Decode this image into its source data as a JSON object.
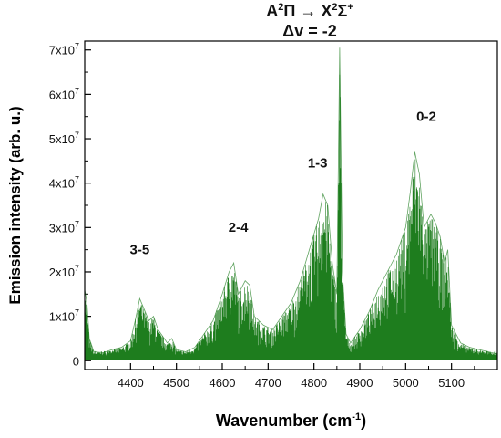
{
  "chart_data": {
    "type": "line",
    "title": {
      "line1_left": "A",
      "line1_sup1": "2",
      "line1_mid": "Π → X",
      "line1_sup2": "2",
      "line1_sym": "Σ",
      "line1_sup3": "+",
      "line2": "Δv = -2"
    },
    "xlabel_main": "Wavenumber (cm",
    "xlabel_sup": "-1",
    "xlabel_end": ")",
    "ylabel": "Emission intensity (arb. u.)",
    "xlim": [
      4300,
      5200
    ],
    "ylim": [
      -2000000.0,
      72000000.0
    ],
    "x_ticks": [
      4400,
      4500,
      4600,
      4700,
      4800,
      4900,
      5000,
      5100
    ],
    "x_tick_labels": [
      "4400",
      "4500",
      "4600",
      "4700",
      "4800",
      "4900",
      "5000",
      "5100"
    ],
    "y_ticks": [
      {
        "value": 0,
        "label_main": "0",
        "label_sup": ""
      },
      {
        "value": 10000000,
        "label_main": "1x10",
        "label_sup": "7"
      },
      {
        "value": 20000000,
        "label_main": "2x10",
        "label_sup": "7"
      },
      {
        "value": 30000000,
        "label_main": "3x10",
        "label_sup": "7"
      },
      {
        "value": 40000000,
        "label_main": "4x10",
        "label_sup": "7"
      },
      {
        "value": 50000000,
        "label_main": "5x10",
        "label_sup": "7"
      },
      {
        "value": 60000000,
        "label_main": "6x10",
        "label_sup": "7"
      },
      {
        "value": 70000000,
        "label_main": "7x10",
        "label_sup": "7"
      }
    ],
    "series_color": "#1e7d1e",
    "bands": [
      {
        "label": "3-5",
        "x": 4420,
        "y": 24000000
      },
      {
        "label": "2-4",
        "x": 4635,
        "y": 29000000
      },
      {
        "label": "1-3",
        "x": 4808,
        "y": 43500000
      },
      {
        "label": "0-2",
        "x": 5045,
        "y": 54000000
      }
    ],
    "envelope": [
      [
        4300,
        16000000
      ],
      [
        4305,
        13000000
      ],
      [
        4310,
        5000000
      ],
      [
        4320,
        2000000
      ],
      [
        4340,
        1800000
      ],
      [
        4360,
        2500000
      ],
      [
        4380,
        3000000
      ],
      [
        4400,
        4500000
      ],
      [
        4410,
        9000000
      ],
      [
        4420,
        14000000
      ],
      [
        4430,
        11500000
      ],
      [
        4440,
        9000000
      ],
      [
        4450,
        10000000
      ],
      [
        4460,
        7000000
      ],
      [
        4470,
        5500000
      ],
      [
        4480,
        4000000
      ],
      [
        4490,
        5000000
      ],
      [
        4500,
        2500000
      ],
      [
        4520,
        2000000
      ],
      [
        4540,
        3000000
      ],
      [
        4560,
        6000000
      ],
      [
        4580,
        9000000
      ],
      [
        4600,
        15000000
      ],
      [
        4615,
        20000000
      ],
      [
        4625,
        22000000
      ],
      [
        4635,
        15000000
      ],
      [
        4650,
        18000000
      ],
      [
        4660,
        17000000
      ],
      [
        4670,
        10000000
      ],
      [
        4690,
        8000000
      ],
      [
        4710,
        7000000
      ],
      [
        4730,
        10000000
      ],
      [
        4750,
        13000000
      ],
      [
        4770,
        18000000
      ],
      [
        4790,
        25000000
      ],
      [
        4810,
        32000000
      ],
      [
        4820,
        37500000
      ],
      [
        4830,
        35000000
      ],
      [
        4840,
        22000000
      ],
      [
        4850,
        15000000
      ],
      [
        4856,
        70500000
      ],
      [
        4862,
        20000000
      ],
      [
        4870,
        6000000
      ],
      [
        4880,
        4000000
      ],
      [
        4900,
        7000000
      ],
      [
        4920,
        11000000
      ],
      [
        4940,
        16000000
      ],
      [
        4960,
        20000000
      ],
      [
        4980,
        24000000
      ],
      [
        5000,
        30000000
      ],
      [
        5010,
        38000000
      ],
      [
        5020,
        47000000
      ],
      [
        5030,
        42000000
      ],
      [
        5040,
        30000000
      ],
      [
        5055,
        33000000
      ],
      [
        5065,
        31000000
      ],
      [
        5075,
        28000000
      ],
      [
        5085,
        22000000
      ],
      [
        5092,
        25000000
      ],
      [
        5100,
        8000000
      ],
      [
        5120,
        4000000
      ],
      [
        5140,
        3000000
      ],
      [
        5160,
        2500000
      ],
      [
        5180,
        2000000
      ],
      [
        5200,
        1500000
      ]
    ]
  }
}
